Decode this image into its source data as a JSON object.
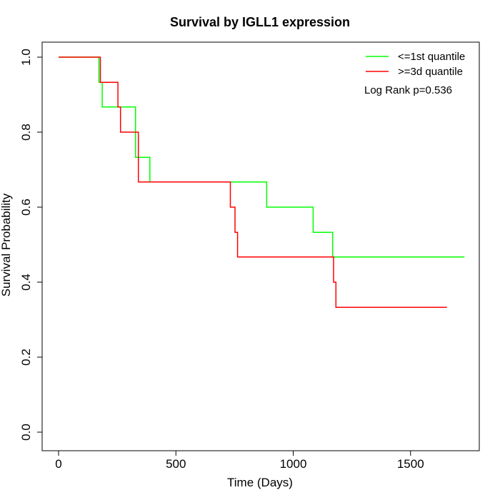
{
  "chart_data": {
    "type": "line",
    "title": "Survival by IGLL1 expression",
    "xlabel": "Time (Days)",
    "ylabel": "Survival Probability",
    "xlim": [
      0,
      1800
    ],
    "ylim": [
      0,
      1.0
    ],
    "x_ticks": [
      0,
      500,
      1000,
      1500
    ],
    "x_tick_labels": [
      "0",
      "500",
      "1000",
      "1500"
    ],
    "y_ticks": [
      0,
      0.2,
      0.4,
      0.6,
      0.8,
      1.0
    ],
    "y_tick_labels": [
      "0.0",
      "0.2",
      "0.4",
      "0.6",
      "0.8",
      "1.0"
    ],
    "grid": false,
    "legend_position": "top-right",
    "annotation": "Log Rank p=0.536",
    "series": [
      {
        "name": "<=1st quantile",
        "color": "#00ff00",
        "step_points": [
          [
            0,
            1.0
          ],
          [
            172,
            1.0
          ],
          [
            172,
            0.933
          ],
          [
            186,
            0.933
          ],
          [
            186,
            0.867
          ],
          [
            328,
            0.867
          ],
          [
            328,
            0.733
          ],
          [
            389,
            0.733
          ],
          [
            389,
            0.667
          ],
          [
            887,
            0.667
          ],
          [
            887,
            0.6
          ],
          [
            1085,
            0.6
          ],
          [
            1085,
            0.533
          ],
          [
            1168,
            0.533
          ],
          [
            1168,
            0.467
          ],
          [
            1730,
            0.467
          ]
        ]
      },
      {
        "name": ">=3d quantile",
        "color": "#ff0000",
        "step_points": [
          [
            0,
            1.0
          ],
          [
            178,
            1.0
          ],
          [
            178,
            0.933
          ],
          [
            253,
            0.933
          ],
          [
            253,
            0.867
          ],
          [
            264,
            0.867
          ],
          [
            264,
            0.8
          ],
          [
            340,
            0.8
          ],
          [
            340,
            0.667
          ],
          [
            732,
            0.667
          ],
          [
            732,
            0.6
          ],
          [
            752,
            0.6
          ],
          [
            752,
            0.533
          ],
          [
            763,
            0.533
          ],
          [
            763,
            0.467
          ],
          [
            1172,
            0.467
          ],
          [
            1172,
            0.4
          ],
          [
            1182,
            0.4
          ],
          [
            1182,
            0.333
          ],
          [
            1655,
            0.333
          ]
        ]
      }
    ]
  }
}
